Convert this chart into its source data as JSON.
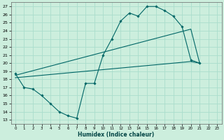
{
  "xlabel": "Humidex (Indice chaleur)",
  "bg_color": "#cceedd",
  "grid_color": "#aaddcc",
  "line_color": "#006666",
  "xlim": [
    -0.5,
    23.5
  ],
  "ylim": [
    12.5,
    27.5
  ],
  "xticks": [
    0,
    1,
    2,
    3,
    4,
    5,
    6,
    7,
    8,
    9,
    10,
    11,
    12,
    13,
    14,
    15,
    16,
    17,
    18,
    19,
    20,
    21,
    22,
    23
  ],
  "yticks": [
    13,
    14,
    15,
    16,
    17,
    18,
    19,
    20,
    21,
    22,
    23,
    24,
    25,
    26,
    27
  ],
  "curve1_x": [
    0,
    1,
    2,
    3,
    4,
    5,
    6,
    7,
    8,
    9,
    10,
    11,
    12,
    13,
    14,
    15,
    16,
    17,
    18,
    19,
    20,
    21
  ],
  "curve1_y": [
    18.7,
    17.0,
    16.8,
    16.0,
    15.0,
    14.0,
    13.5,
    13.2,
    17.5,
    17.5,
    21.0,
    23.0,
    25.2,
    26.2,
    25.8,
    27.0,
    27.0,
    26.5,
    25.8,
    24.5,
    20.4,
    20.0
  ],
  "curve2_x": [
    0,
    20,
    21
  ],
  "curve2_y": [
    18.5,
    24.2,
    20.0
  ],
  "curve3_x": [
    0,
    20,
    21
  ],
  "curve3_y": [
    18.2,
    20.2,
    20.0
  ]
}
